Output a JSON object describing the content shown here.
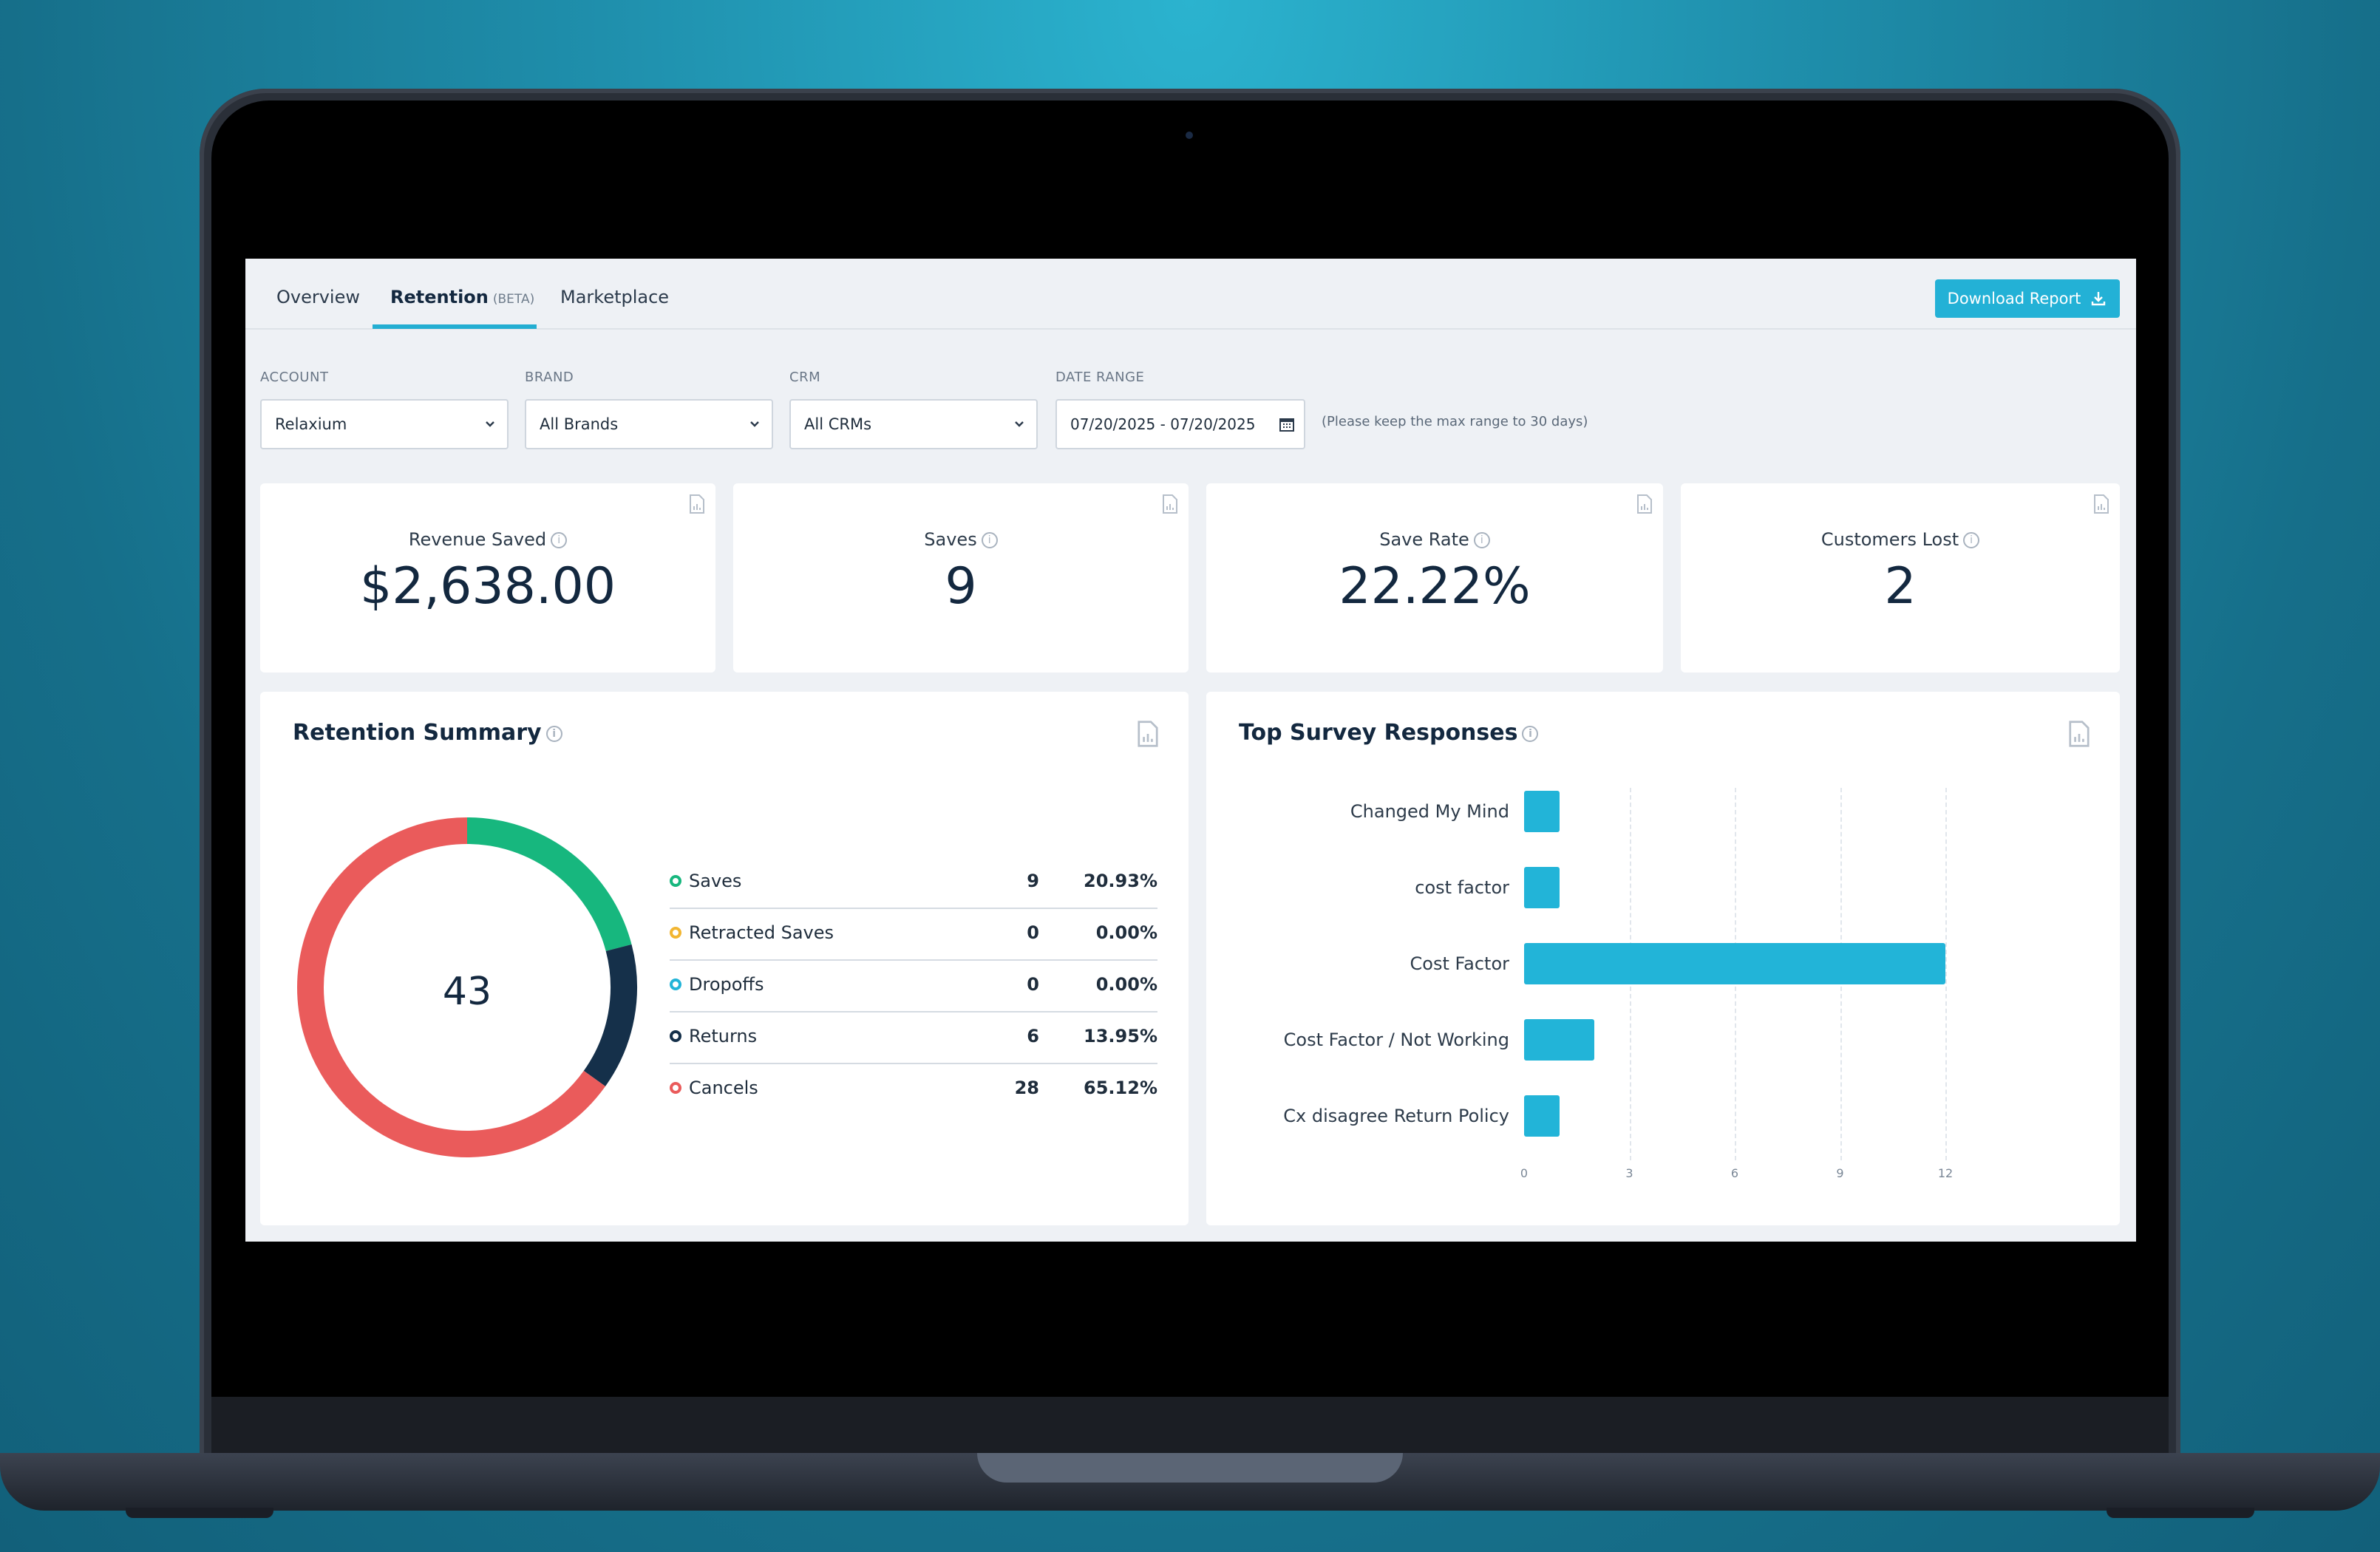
{
  "tabs": [
    {
      "label": "Overview"
    },
    {
      "label": "Retention",
      "badge": "(BETA)"
    },
    {
      "label": "Marketplace"
    }
  ],
  "download_label": "Download Report",
  "filters": {
    "account": {
      "label": "ACCOUNT",
      "value": "Relaxium"
    },
    "brand": {
      "label": "BRAND",
      "value": "All Brands"
    },
    "crm": {
      "label": "CRM",
      "value": "All CRMs"
    },
    "date_range": {
      "label": "DATE RANGE",
      "value": "07/20/2025 - 07/20/2025"
    },
    "hint": "(Please keep the max range to 30 days)"
  },
  "kpis": [
    {
      "title": "Revenue Saved",
      "value": "$2,638.00"
    },
    {
      "title": "Saves",
      "value": "9"
    },
    {
      "title": "Save Rate",
      "value": "22.22%"
    },
    {
      "title": "Customers Lost",
      "value": "2"
    }
  ],
  "retention_summary": {
    "title": "Retention Summary",
    "total": "43",
    "rows": [
      {
        "name": "Saves",
        "count": "9",
        "pct": "20.93%",
        "color": "#17b77e"
      },
      {
        "name": "Retracted Saves",
        "count": "0",
        "pct": "0.00%",
        "color": "#f2b632"
      },
      {
        "name": "Dropoffs",
        "count": "0",
        "pct": "0.00%",
        "color": "#22b4d8"
      },
      {
        "name": "Returns",
        "count": "6",
        "pct": "13.95%",
        "color": "#15304a"
      },
      {
        "name": "Cancels",
        "count": "28",
        "pct": "65.12%",
        "color": "#ea5b5b"
      }
    ]
  },
  "survey": {
    "title": "Top Survey Responses"
  },
  "chart_data": {
    "type": "bar",
    "orientation": "horizontal",
    "title": "Top Survey Responses",
    "categories": [
      "Changed My Mind",
      "cost factor",
      "Cost Factor",
      "Cost Factor / Not Working",
      "Cx disagree Return Policy"
    ],
    "values": [
      1,
      1,
      12,
      2,
      1
    ],
    "xlim": [
      0,
      12
    ],
    "xticks": [
      "0",
      "3",
      "6",
      "9",
      "12"
    ],
    "grid": true,
    "color": "#22b4d8"
  }
}
